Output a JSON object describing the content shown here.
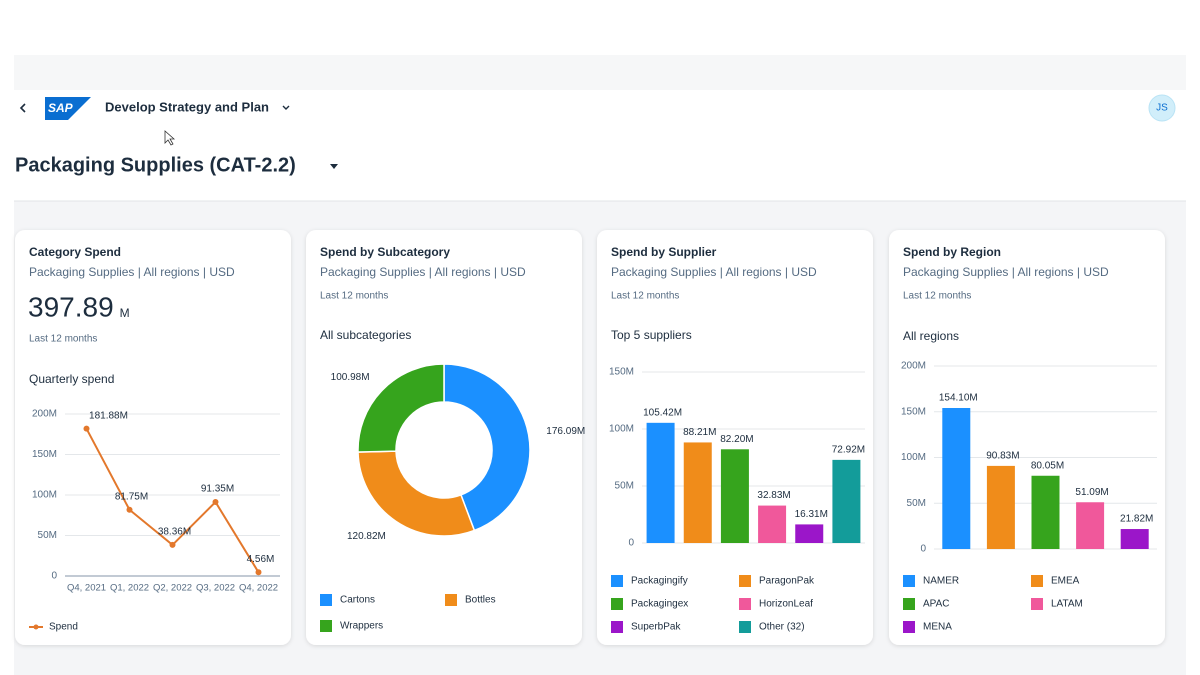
{
  "header": {
    "logo": "SAP",
    "app_title": "Develop Strategy and Plan",
    "avatar": "JS"
  },
  "page_title": "Packaging Supplies (CAT-2.2)",
  "cards": [
    {
      "title": "Category Spend",
      "subtitle": "Packaging Supplies | All regions | USD",
      "kpi_value": 397.89,
      "kpi_unit": "M",
      "period": "Last 12 months"
    },
    {
      "title": "Spend by Subcategory",
      "subtitle": "Packaging Supplies | All regions | USD",
      "period": "Last 12 months"
    },
    {
      "title": "Spend by Supplier",
      "subtitle": "Packaging Supplies | All regions | USD",
      "period": "Last 12 months"
    },
    {
      "title": "Spend by Region",
      "subtitle": "Packaging Supplies | All regions | USD",
      "period": "Last 12 months"
    }
  ],
  "chart_data": [
    {
      "type": "line",
      "title": "Quarterly spend",
      "categories": [
        "Q4, 2021",
        "Q1, 2022",
        "Q2, 2022",
        "Q3, 2022",
        "Q4, 2022"
      ],
      "series": [
        {
          "name": "Spend",
          "color": "#e3782c",
          "values": [
            181.88,
            81.75,
            38.36,
            91.35,
            4.56
          ],
          "value_labels": [
            "181.88M",
            "81.75M",
            "38.36M",
            "91.35M",
            "4.56M"
          ]
        }
      ],
      "ylim": [
        0,
        200
      ],
      "yticks": [
        0,
        {
          "value": 50,
          "label": "50M"
        },
        {
          "value": 100,
          "label": "100M"
        },
        {
          "value": 150,
          "label": "150M"
        },
        {
          "value": 200,
          "label": "200M"
        }
      ],
      "grid": true
    },
    {
      "type": "pie",
      "title": "All subcategories",
      "categories": [
        "Cartons",
        "Bottles",
        "Wrappers"
      ],
      "values": [
        176.09,
        120.82,
        100.98
      ],
      "value_labels": [
        "176.09M",
        "120.82M",
        "100.98M"
      ],
      "colors": [
        "#1b90ff",
        "#f08c1a",
        "#36a41d"
      ]
    },
    {
      "type": "bar",
      "title": "Top 5 suppliers",
      "categories": [
        "Packagingify",
        "ParagonPak",
        "Packagingex",
        "HorizonLeaf",
        "SuperbPak",
        "Other (32)"
      ],
      "values": [
        105.42,
        88.21,
        82.2,
        32.83,
        16.31,
        72.92
      ],
      "value_labels": [
        "105.42M",
        "88.21M",
        "82.20M",
        "32.83M",
        "16.31M",
        "72.92M"
      ],
      "colors": [
        "#1b90ff",
        "#f08c1a",
        "#36a41d",
        "#f0589b",
        "#9b16c9",
        "#139c9a"
      ],
      "ylim": [
        0,
        150
      ],
      "yticks": [
        0,
        {
          "value": 50,
          "label": "50M"
        },
        {
          "value": 100,
          "label": "100M"
        },
        {
          "value": 150,
          "label": "150M"
        }
      ],
      "grid": true
    },
    {
      "type": "bar",
      "title": "All regions",
      "categories": [
        "NAMER",
        "EMEA",
        "APAC",
        "LATAM",
        "MENA"
      ],
      "values": [
        154.1,
        90.83,
        80.05,
        51.09,
        21.82
      ],
      "value_labels": [
        "154.10M",
        "90.83M",
        "80.05M",
        "51.09M",
        "21.82M"
      ],
      "colors": [
        "#1b90ff",
        "#f08c1a",
        "#36a41d",
        "#f0589b",
        "#9b16c9"
      ],
      "ylim": [
        0,
        200
      ],
      "yticks": [
        0,
        {
          "value": 50,
          "label": "50M"
        },
        {
          "value": 100,
          "label": "100M"
        },
        {
          "value": 150,
          "label": "150M"
        },
        {
          "value": 200,
          "label": "200M"
        }
      ],
      "grid": true
    }
  ]
}
